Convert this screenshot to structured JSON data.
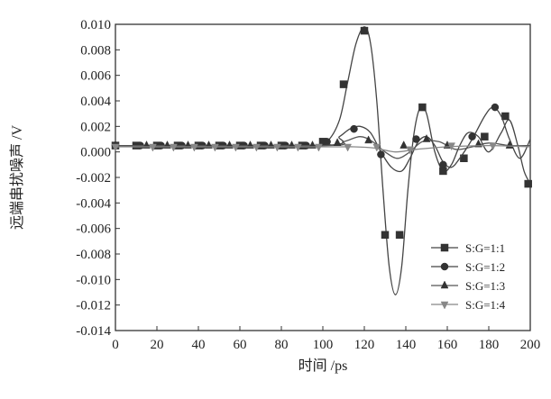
{
  "chart_data": {
    "type": "line",
    "xlabel": "时间 /ps",
    "ylabel": "远端串扰噪声 /V",
    "xlim": [
      0,
      200
    ],
    "ylim": [
      -0.014,
      0.01
    ],
    "xticks": [
      "0",
      "20",
      "40",
      "60",
      "80",
      "100",
      "120",
      "140",
      "160",
      "180",
      "200"
    ],
    "yticks": [
      "0.010",
      "0.008",
      "0.006",
      "0.004",
      "0.002",
      "0.000",
      "-0.002",
      "-0.004",
      "-0.006",
      "-0.008",
      "-0.010",
      "-0.012",
      "-0.014"
    ],
    "grid": false,
    "legend_position": "bottom-right",
    "series": [
      {
        "name": "S:G=1:1",
        "marker": "square",
        "curve": [
          [
            0,
            0.0005
          ],
          [
            95,
            0.0005
          ],
          [
            102,
            0.0008
          ],
          [
            108,
            0.0025
          ],
          [
            112,
            0.0055
          ],
          [
            116,
            0.0085
          ],
          [
            120,
            0.0098
          ],
          [
            123,
            0.0085
          ],
          [
            126,
            0.004
          ],
          [
            129,
            -0.003
          ],
          [
            132,
            -0.009
          ],
          [
            135,
            -0.0112
          ],
          [
            138,
            -0.009
          ],
          [
            141,
            -0.003
          ],
          [
            144,
            0.0015
          ],
          [
            147,
            0.0035
          ],
          [
            150,
            0.003
          ],
          [
            154,
            0.0
          ],
          [
            158,
            -0.0015
          ],
          [
            162,
            -0.001
          ],
          [
            166,
            0.0005
          ],
          [
            170,
            0.0015
          ],
          [
            175,
            0.0012
          ],
          [
            180,
            0.0
          ],
          [
            186,
            0.0015
          ],
          [
            190,
            0.0025
          ],
          [
            194,
            0.0005
          ],
          [
            197,
            -0.0015
          ],
          [
            200,
            -0.0025
          ]
        ],
        "points": [
          [
            0,
            0.0005
          ],
          [
            10,
            0.0005
          ],
          [
            20,
            0.0005
          ],
          [
            30,
            0.0005
          ],
          [
            40,
            0.0005
          ],
          [
            50,
            0.0005
          ],
          [
            60,
            0.0005
          ],
          [
            70,
            0.0005
          ],
          [
            80,
            0.0005
          ],
          [
            90,
            0.0005
          ],
          [
            100,
            0.0008
          ],
          [
            110,
            0.0053
          ],
          [
            120,
            0.0095
          ],
          [
            130,
            -0.0065
          ],
          [
            137,
            -0.0065
          ],
          [
            148,
            0.0035
          ],
          [
            158,
            -0.0015
          ],
          [
            168,
            -0.0005
          ],
          [
            178,
            0.0012
          ],
          [
            188,
            0.0028
          ],
          [
            199,
            -0.0025
          ]
        ]
      },
      {
        "name": "S:G=1:2",
        "marker": "circle",
        "curve": [
          [
            0,
            0.0005
          ],
          [
            100,
            0.0005
          ],
          [
            108,
            0.0012
          ],
          [
            113,
            0.0018
          ],
          [
            118,
            0.002
          ],
          [
            123,
            0.0015
          ],
          [
            128,
            0.0
          ],
          [
            133,
            -0.0012
          ],
          [
            138,
            -0.0015
          ],
          [
            142,
            -0.0005
          ],
          [
            146,
            0.0008
          ],
          [
            150,
            0.0012
          ],
          [
            154,
            0.0005
          ],
          [
            158,
            -0.0008
          ],
          [
            162,
            -0.0012
          ],
          [
            166,
            -0.0005
          ],
          [
            172,
            0.001
          ],
          [
            178,
            0.0028
          ],
          [
            182,
            0.0035
          ],
          [
            186,
            0.0028
          ],
          [
            190,
            0.001
          ],
          [
            195,
            -0.0005
          ],
          [
            200,
            0.001
          ]
        ],
        "points": [
          [
            0,
            0.0005
          ],
          [
            12,
            0.0005
          ],
          [
            22,
            0.0005
          ],
          [
            32,
            0.0005
          ],
          [
            42,
            0.0005
          ],
          [
            52,
            0.0005
          ],
          [
            62,
            0.0005
          ],
          [
            72,
            0.0005
          ],
          [
            82,
            0.0005
          ],
          [
            92,
            0.0005
          ],
          [
            102,
            0.0008
          ],
          [
            115,
            0.0018
          ],
          [
            128,
            -0.0002
          ],
          [
            145,
            0.001
          ],
          [
            158,
            -0.001
          ],
          [
            172,
            0.0012
          ],
          [
            183,
            0.0035
          ]
        ]
      },
      {
        "name": "S:G=1:3",
        "marker": "triangle",
        "curve": [
          [
            0,
            0.0005
          ],
          [
            100,
            0.0005
          ],
          [
            110,
            0.0008
          ],
          [
            118,
            0.0012
          ],
          [
            124,
            0.0008
          ],
          [
            130,
            0.0
          ],
          [
            136,
            -0.0005
          ],
          [
            142,
            0.0
          ],
          [
            148,
            0.0008
          ],
          [
            156,
            0.0008
          ],
          [
            164,
            0.0002
          ],
          [
            172,
            0.0004
          ],
          [
            180,
            0.0007
          ],
          [
            190,
            0.0005
          ],
          [
            200,
            0.0005
          ]
        ],
        "points": [
          [
            0,
            0.0005
          ],
          [
            15,
            0.0005
          ],
          [
            25,
            0.0005
          ],
          [
            35,
            0.0005
          ],
          [
            45,
            0.0005
          ],
          [
            55,
            0.0005
          ],
          [
            65,
            0.0005
          ],
          [
            75,
            0.0005
          ],
          [
            85,
            0.0005
          ],
          [
            95,
            0.0005
          ],
          [
            107,
            0.0007
          ],
          [
            122,
            0.0009
          ],
          [
            139,
            0.0005
          ],
          [
            150,
            0.001
          ],
          [
            160,
            0.0005
          ],
          [
            175,
            0.0006
          ],
          [
            190,
            0.0005
          ]
        ]
      },
      {
        "name": "S:G=1:4",
        "marker": "triangle-down",
        "curve": [
          [
            0,
            0.0004
          ],
          [
            100,
            0.0004
          ],
          [
            115,
            0.0004
          ],
          [
            125,
            0.0003
          ],
          [
            135,
            0.0
          ],
          [
            145,
            0.0002
          ],
          [
            160,
            0.0004
          ],
          [
            180,
            0.0005
          ],
          [
            200,
            0.0004
          ]
        ],
        "points": [
          [
            0,
            0.0004
          ],
          [
            18,
            0.0004
          ],
          [
            28,
            0.0004
          ],
          [
            38,
            0.0004
          ],
          [
            48,
            0.0004
          ],
          [
            58,
            0.0004
          ],
          [
            68,
            0.0004
          ],
          [
            78,
            0.0004
          ],
          [
            88,
            0.0004
          ],
          [
            98,
            0.0004
          ],
          [
            112,
            0.0004
          ],
          [
            126,
            0.0004
          ],
          [
            142,
            0.0002
          ],
          [
            162,
            0.0005
          ],
          [
            182,
            0.0005
          ]
        ]
      }
    ]
  }
}
